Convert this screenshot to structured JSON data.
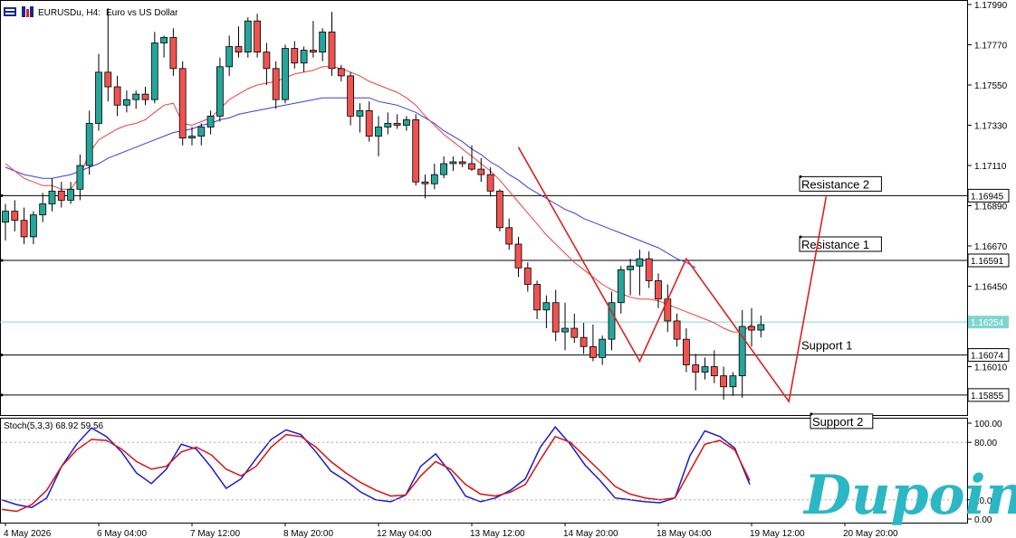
{
  "header": {
    "title": "EURUSDu, H4:",
    "subtitle": "Euro vs US Dollar"
  },
  "indicator": {
    "label": "Stoch(5,3,3) 68.92 59.56",
    "k_color": "#1a1ad6",
    "d_color": "#e01010"
  },
  "logo": {
    "text": "Dupoin",
    "color": "#2bb7c3"
  },
  "colors": {
    "bull": "#26a69a",
    "bear": "#ef5350",
    "ma_fast": "#f04040",
    "ma_slow": "#3a3af0",
    "zigzag": "#e02020",
    "current_price_line": "#7fd6d0"
  },
  "chart_data": [
    {
      "type": "candlestick",
      "symbol": "EURUSDu",
      "timeframe": "H4",
      "ylim": [
        1.158,
        1.1799
      ],
      "y_ticks": [
        "1.17990",
        "1.17770",
        "1.17550",
        "1.17330",
        "1.17110",
        "1.16890",
        "1.16670",
        "1.16450",
        "1.16010"
      ],
      "x_ticks": [
        {
          "label": "4 May 2026",
          "index": 0
        },
        {
          "label": "6 May 04:00",
          "index": 10
        },
        {
          "label": "7 May 12:00",
          "index": 20
        },
        {
          "label": "8 May 20:00",
          "index": 30
        },
        {
          "label": "12 May 04:00",
          "index": 40
        },
        {
          "label": "13 May 12:00",
          "index": 50
        },
        {
          "label": "14 May 20:00",
          "index": 60
        },
        {
          "label": "18 May 04:00",
          "index": 70
        },
        {
          "label": "19 May 12:00",
          "index": 80
        },
        {
          "label": "20 May 20:00",
          "index": 90
        }
      ],
      "candles": [
        [
          1.168,
          1.169,
          1.167,
          1.1686
        ],
        [
          1.1686,
          1.1692,
          1.1675,
          1.1681
        ],
        [
          1.1681,
          1.1688,
          1.1668,
          1.1672
        ],
        [
          1.1672,
          1.1686,
          1.1668,
          1.1684
        ],
        [
          1.1684,
          1.1696,
          1.168,
          1.169
        ],
        [
          1.169,
          1.1704,
          1.1686,
          1.1697
        ],
        [
          1.1697,
          1.1702,
          1.1688,
          1.1692
        ],
        [
          1.1692,
          1.1702,
          1.169,
          1.1698
        ],
        [
          1.1698,
          1.1717,
          1.1692,
          1.1711
        ],
        [
          1.1711,
          1.1741,
          1.1706,
          1.1734
        ],
        [
          1.1734,
          1.1772,
          1.173,
          1.1762
        ],
        [
          1.1762,
          1.1797,
          1.1746,
          1.1754
        ],
        [
          1.1754,
          1.176,
          1.1738,
          1.1744
        ],
        [
          1.1744,
          1.1752,
          1.174,
          1.1747
        ],
        [
          1.1747,
          1.1752,
          1.1742,
          1.175
        ],
        [
          1.175,
          1.1754,
          1.1744,
          1.1747
        ],
        [
          1.1747,
          1.1784,
          1.1745,
          1.1778
        ],
        [
          1.1778,
          1.1782,
          1.177,
          1.1781
        ],
        [
          1.1781,
          1.1786,
          1.176,
          1.1764
        ],
        [
          1.1764,
          1.1768,
          1.1722,
          1.1726
        ],
        [
          1.1726,
          1.1732,
          1.1722,
          1.1727
        ],
        [
          1.1727,
          1.1734,
          1.1722,
          1.1732
        ],
        [
          1.1732,
          1.1741,
          1.1728,
          1.1738
        ],
        [
          1.1738,
          1.177,
          1.1735,
          1.1765
        ],
        [
          1.1765,
          1.1782,
          1.176,
          1.1776
        ],
        [
          1.1776,
          1.1787,
          1.177,
          1.1773
        ],
        [
          1.1773,
          1.1792,
          1.177,
          1.179
        ],
        [
          1.179,
          1.1794,
          1.177,
          1.1773
        ],
        [
          1.1773,
          1.1778,
          1.1755,
          1.1764
        ],
        [
          1.1764,
          1.1768,
          1.1742,
          1.1747
        ],
        [
          1.1747,
          1.1777,
          1.1745,
          1.1775
        ],
        [
          1.1775,
          1.1779,
          1.1764,
          1.1767
        ],
        [
          1.1767,
          1.1776,
          1.1762,
          1.1774
        ],
        [
          1.1774,
          1.179,
          1.177,
          1.1773
        ],
        [
          1.1773,
          1.1786,
          1.1768,
          1.1784
        ],
        [
          1.1784,
          1.1795,
          1.176,
          1.1764
        ],
        [
          1.1764,
          1.1766,
          1.1757,
          1.176
        ],
        [
          1.176,
          1.1762,
          1.1733,
          1.1738
        ],
        [
          1.1738,
          1.1745,
          1.1729,
          1.1741
        ],
        [
          1.1741,
          1.1746,
          1.1724,
          1.1727
        ],
        [
          1.1727,
          1.1738,
          1.1716,
          1.1732
        ],
        [
          1.1732,
          1.174,
          1.1728,
          1.1734
        ],
        [
          1.1734,
          1.1739,
          1.1731,
          1.1733
        ],
        [
          1.1733,
          1.1738,
          1.173,
          1.1736
        ],
        [
          1.1736,
          1.1739,
          1.17,
          1.1702
        ],
        [
          1.1702,
          1.1706,
          1.1693,
          1.1701
        ],
        [
          1.1701,
          1.1712,
          1.1698,
          1.1706
        ],
        [
          1.1706,
          1.1716,
          1.1704,
          1.1712
        ],
        [
          1.1712,
          1.1716,
          1.1708,
          1.1713
        ],
        [
          1.1713,
          1.1716,
          1.171,
          1.1712
        ],
        [
          1.1712,
          1.1722,
          1.1708,
          1.1709
        ],
        [
          1.1709,
          1.1715,
          1.1702,
          1.1706
        ],
        [
          1.1706,
          1.171,
          1.1694,
          1.1697
        ],
        [
          1.1697,
          1.1698,
          1.1675,
          1.1677
        ],
        [
          1.1677,
          1.1682,
          1.1665,
          1.1668
        ],
        [
          1.1668,
          1.1672,
          1.165,
          1.1655
        ],
        [
          1.1655,
          1.1658,
          1.1642,
          1.1646
        ],
        [
          1.1646,
          1.1648,
          1.1627,
          1.1632
        ],
        [
          1.1632,
          1.164,
          1.1622,
          1.1636
        ],
        [
          1.1636,
          1.1643,
          1.1615,
          1.162
        ],
        [
          1.162,
          1.1636,
          1.161,
          1.1622
        ],
        [
          1.1622,
          1.163,
          1.1614,
          1.1617
        ],
        [
          1.1617,
          1.1625,
          1.1608,
          1.1612
        ],
        [
          1.1612,
          1.1624,
          1.1604,
          1.1606
        ],
        [
          1.1606,
          1.1618,
          1.1602,
          1.1616
        ],
        [
          1.1616,
          1.1642,
          1.161,
          1.1636
        ],
        [
          1.1636,
          1.1656,
          1.163,
          1.1654
        ],
        [
          1.1654,
          1.166,
          1.164,
          1.1656
        ],
        [
          1.1656,
          1.1665,
          1.164,
          1.166
        ],
        [
          1.166,
          1.1664,
          1.1644,
          1.1648
        ],
        [
          1.1648,
          1.1652,
          1.1633,
          1.1638
        ],
        [
          1.1638,
          1.1646,
          1.162,
          1.1626
        ],
        [
          1.1626,
          1.163,
          1.1612,
          1.1616
        ],
        [
          1.1616,
          1.1622,
          1.1598,
          1.1602
        ],
        [
          1.1602,
          1.1608,
          1.1588,
          1.1598
        ],
        [
          1.1598,
          1.1606,
          1.1594,
          1.1601
        ],
        [
          1.1601,
          1.161,
          1.1592,
          1.1596
        ],
        [
          1.1596,
          1.1601,
          1.1583,
          1.159
        ],
        [
          1.159,
          1.1598,
          1.1585,
          1.1596
        ],
        [
          1.1596,
          1.1632,
          1.1584,
          1.1623
        ],
        [
          1.1623,
          1.1633,
          1.1612,
          1.1621
        ],
        [
          1.1621,
          1.1629,
          1.1617,
          1.1624
        ]
      ],
      "ma_fast": [
        1.1712,
        1.1708,
        1.1704,
        1.1702,
        1.17,
        1.17,
        1.1698,
        1.1698,
        1.1705,
        1.1718,
        1.1725,
        1.1728,
        1.1731,
        1.1733,
        1.1734,
        1.1736,
        1.174,
        1.1744,
        1.1745,
        1.1734,
        1.1733,
        1.1735,
        1.1737,
        1.1742,
        1.1747,
        1.175,
        1.1753,
        1.1755,
        1.1756,
        1.1757,
        1.1759,
        1.1761,
        1.1762,
        1.1763,
        1.1765,
        1.1765,
        1.1764,
        1.1762,
        1.176,
        1.1757,
        1.1755,
        1.1753,
        1.1751,
        1.1748,
        1.1744,
        1.1738,
        1.1733,
        1.1728,
        1.1724,
        1.172,
        1.1716,
        1.1712,
        1.1708,
        1.1703,
        1.1697,
        1.1691,
        1.1685,
        1.1679,
        1.1673,
        1.1668,
        1.1663,
        1.1658,
        1.1654,
        1.165,
        1.1646,
        1.1643,
        1.1641,
        1.1639,
        1.1638,
        1.1638,
        1.1637,
        1.1635,
        1.1633,
        1.1631,
        1.1629,
        1.1627,
        1.1625,
        1.1622,
        1.162,
        1.162,
        1.1624
      ],
      "ma_slow": [
        1.171,
        1.1708,
        1.1706,
        1.1705,
        1.1704,
        1.1704,
        1.1705,
        1.1706,
        1.1708,
        1.171,
        1.1712,
        1.1715,
        1.1717,
        1.1719,
        1.1721,
        1.1723,
        1.1725,
        1.1727,
        1.1729,
        1.173,
        1.1731,
        1.1733,
        1.1734,
        1.1736,
        1.1737,
        1.1739,
        1.174,
        1.1741,
        1.1742,
        1.1743,
        1.1744,
        1.1745,
        1.1746,
        1.1747,
        1.1748,
        1.1748,
        1.1748,
        1.1748,
        1.1748,
        1.1748,
        1.1746,
        1.1745,
        1.1744,
        1.1742,
        1.174,
        1.1737,
        1.1734,
        1.173,
        1.1727,
        1.1724,
        1.172,
        1.1717,
        1.1713,
        1.171,
        1.1706,
        1.1703,
        1.1699,
        1.1696,
        1.1693,
        1.169,
        1.1687,
        1.1685,
        1.1682,
        1.168,
        1.1678,
        1.1676,
        1.1674,
        1.1672,
        1.167,
        1.1668,
        1.1666,
        1.1663,
        1.166,
        1.1658,
        1.1655
      ],
      "zigzag": [
        {
          "index": 55,
          "value": 1.1721
        },
        {
          "index": 68,
          "value": 1.1604
        },
        {
          "index": 73,
          "value": 1.166
        },
        {
          "index": 84,
          "value": 1.1582
        },
        {
          "index": 88,
          "value": 1.1694
        }
      ],
      "levels": [
        {
          "name": "Resistance 2",
          "value": "1.16945",
          "price": 1.16945
        },
        {
          "name": "Resistance 1",
          "value": "1.16591",
          "price": 1.16591
        },
        {
          "name": "Support 1",
          "value": "1.16074",
          "price": 1.16074
        },
        {
          "name": "Support 2",
          "value": "1.15855",
          "price": 1.15855
        }
      ],
      "current_price": {
        "value": "1.16254",
        "price": 1.16254
      }
    },
    {
      "type": "line",
      "name": "Stoch(5,3,3)",
      "ylim": [
        0,
        100
      ],
      "y_ticks": [
        "100.00",
        "80.00",
        "20.00",
        "0.00"
      ],
      "series": [
        {
          "name": "K",
          "values": [
            20,
            15,
            12,
            22,
            55,
            78,
            95,
            86,
            70,
            48,
            37,
            52,
            78,
            73,
            54,
            32,
            42,
            63,
            83,
            93,
            88,
            70,
            50,
            40,
            28,
            20,
            18,
            25,
            55,
            68,
            48,
            24,
            18,
            22,
            30,
            42,
            75,
            96,
            78,
            56,
            40,
            22,
            20,
            18,
            17,
            22,
            66,
            92,
            86,
            74,
            36
          ]
        },
        {
          "name": "D",
          "values": [
            10,
            8,
            15,
            30,
            55,
            72,
            83,
            82,
            73,
            60,
            52,
            55,
            70,
            75,
            67,
            52,
            45,
            55,
            75,
            88,
            86,
            75,
            60,
            48,
            38,
            30,
            24,
            25,
            45,
            60,
            52,
            36,
            26,
            24,
            28,
            36,
            62,
            86,
            80,
            65,
            50,
            34,
            26,
            22,
            20,
            22,
            50,
            78,
            82,
            72,
            40
          ]
        }
      ]
    }
  ]
}
